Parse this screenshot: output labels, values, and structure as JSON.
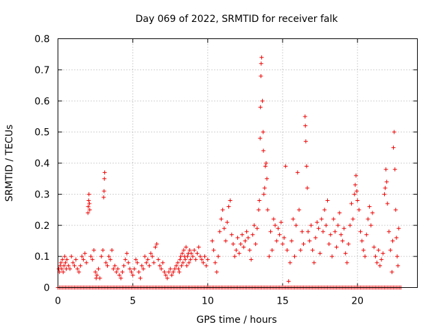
{
  "chart_data": {
    "type": "scatter",
    "title": "Day 069 of 2022, SRMTID for receiver falk",
    "xlabel": "GPS time / hours",
    "ylabel": "SRMTID / TECUs",
    "xlim": [
      0,
      24
    ],
    "ylim": [
      0,
      0.8
    ],
    "xticks": [
      0,
      5,
      10,
      15,
      20
    ],
    "xtick_labels": [
      "0",
      "5",
      "10",
      "15",
      "20"
    ],
    "yticks": [
      0,
      0.1,
      0.2,
      0.3,
      0.4,
      0.5,
      0.6,
      0.7,
      0.8
    ],
    "ytick_labels": [
      "0",
      "0.1",
      "0.2",
      "0.3",
      "0.4",
      "0.5",
      "0.6",
      "0.7",
      "0.8"
    ],
    "grid": true,
    "marker": "+",
    "series_color": "#ee0000",
    "series": [
      {
        "name": "SRMTID",
        "points": [
          [
            0.05,
            0.06
          ],
          [
            0.1,
            0.05
          ],
          [
            0.15,
            0.07
          ],
          [
            0.2,
            0.08
          ],
          [
            0.25,
            0.06
          ],
          [
            0.3,
            0.09
          ],
          [
            0.35,
            0.05
          ],
          [
            0.4,
            0.07
          ],
          [
            0.45,
            0.1
          ],
          [
            0.5,
            0.08
          ],
          [
            0.55,
            0.06
          ],
          [
            0.6,
            0.09
          ],
          [
            0.7,
            0.07
          ],
          [
            0.8,
            0.06
          ],
          [
            0.9,
            0.1
          ],
          [
            1.0,
            0.08
          ],
          [
            1.1,
            0.07
          ],
          [
            1.2,
            0.09
          ],
          [
            1.3,
            0.06
          ],
          [
            1.4,
            0.05
          ],
          [
            1.5,
            0.07
          ],
          [
            1.6,
            0.1
          ],
          [
            1.7,
            0.09
          ],
          [
            1.8,
            0.11
          ],
          [
            1.9,
            0.08
          ],
          [
            2.0,
            0.24
          ],
          [
            2.02,
            0.26
          ],
          [
            2.05,
            0.28
          ],
          [
            2.07,
            0.3
          ],
          [
            2.1,
            0.27
          ],
          [
            2.12,
            0.25
          ],
          [
            2.2,
            0.1
          ],
          [
            2.3,
            0.09
          ],
          [
            2.4,
            0.12
          ],
          [
            2.5,
            0.05
          ],
          [
            2.55,
            0.03
          ],
          [
            2.6,
            0.04
          ],
          [
            2.7,
            0.06
          ],
          [
            2.8,
            0.03
          ],
          [
            2.9,
            0.1
          ],
          [
            3.0,
            0.12
          ],
          [
            3.05,
            0.29
          ],
          [
            3.08,
            0.31
          ],
          [
            3.1,
            0.35
          ],
          [
            3.12,
            0.37
          ],
          [
            3.2,
            0.08
          ],
          [
            3.3,
            0.07
          ],
          [
            3.4,
            0.1
          ],
          [
            3.5,
            0.09
          ],
          [
            3.6,
            0.12
          ],
          [
            3.7,
            0.06
          ],
          [
            3.8,
            0.07
          ],
          [
            3.9,
            0.05
          ],
          [
            4.0,
            0.06
          ],
          [
            4.1,
            0.04
          ],
          [
            4.2,
            0.03
          ],
          [
            4.3,
            0.05
          ],
          [
            4.4,
            0.07
          ],
          [
            4.5,
            0.09
          ],
          [
            4.6,
            0.11
          ],
          [
            4.7,
            0.08
          ],
          [
            4.8,
            0.06
          ],
          [
            4.9,
            0.05
          ],
          [
            5.0,
            0.04
          ],
          [
            5.1,
            0.06
          ],
          [
            5.2,
            0.09
          ],
          [
            5.3,
            0.08
          ],
          [
            5.4,
            0.05
          ],
          [
            5.5,
            0.03
          ],
          [
            5.6,
            0.07
          ],
          [
            5.7,
            0.06
          ],
          [
            5.8,
            0.1
          ],
          [
            5.9,
            0.08
          ],
          [
            6.0,
            0.09
          ],
          [
            6.1,
            0.07
          ],
          [
            6.2,
            0.11
          ],
          [
            6.3,
            0.1
          ],
          [
            6.4,
            0.08
          ],
          [
            6.5,
            0.13
          ],
          [
            6.6,
            0.14
          ],
          [
            6.7,
            0.09
          ],
          [
            6.8,
            0.07
          ],
          [
            6.9,
            0.06
          ],
          [
            7.0,
            0.08
          ],
          [
            7.1,
            0.05
          ],
          [
            7.2,
            0.04
          ],
          [
            7.3,
            0.03
          ],
          [
            7.4,
            0.05
          ],
          [
            7.5,
            0.06
          ],
          [
            7.6,
            0.04
          ],
          [
            7.7,
            0.05
          ],
          [
            7.8,
            0.06
          ],
          [
            7.9,
            0.07
          ],
          [
            8.0,
            0.08
          ],
          [
            8.05,
            0.06
          ],
          [
            8.1,
            0.05
          ],
          [
            8.15,
            0.09
          ],
          [
            8.2,
            0.1
          ],
          [
            8.25,
            0.07
          ],
          [
            8.3,
            0.11
          ],
          [
            8.35,
            0.08
          ],
          [
            8.4,
            0.12
          ],
          [
            8.45,
            0.1
          ],
          [
            8.5,
            0.09
          ],
          [
            8.55,
            0.13
          ],
          [
            8.6,
            0.07
          ],
          [
            8.65,
            0.1
          ],
          [
            8.7,
            0.11
          ],
          [
            8.75,
            0.08
          ],
          [
            8.8,
            0.12
          ],
          [
            8.85,
            0.09
          ],
          [
            8.9,
            0.11
          ],
          [
            9.0,
            0.1
          ],
          [
            9.1,
            0.12
          ],
          [
            9.2,
            0.09
          ],
          [
            9.3,
            0.11
          ],
          [
            9.4,
            0.13
          ],
          [
            9.5,
            0.1
          ],
          [
            9.6,
            0.09
          ],
          [
            9.7,
            0.08
          ],
          [
            9.8,
            0.1
          ],
          [
            9.9,
            0.07
          ],
          [
            10.0,
            0.09
          ],
          [
            10.3,
            0.15
          ],
          [
            10.4,
            0.12
          ],
          [
            10.5,
            0.08
          ],
          [
            10.6,
            0.05
          ],
          [
            10.7,
            0.1
          ],
          [
            10.8,
            0.18
          ],
          [
            10.9,
            0.22
          ],
          [
            11.0,
            0.25
          ],
          [
            11.1,
            0.19
          ],
          [
            11.2,
            0.15
          ],
          [
            11.3,
            0.21
          ],
          [
            11.4,
            0.26
          ],
          [
            11.5,
            0.28
          ],
          [
            11.6,
            0.17
          ],
          [
            11.7,
            0.14
          ],
          [
            11.8,
            0.1
          ],
          [
            11.9,
            0.12
          ],
          [
            12.0,
            0.16
          ],
          [
            12.1,
            0.11
          ],
          [
            12.2,
            0.14
          ],
          [
            12.3,
            0.17
          ],
          [
            12.4,
            0.13
          ],
          [
            12.5,
            0.15
          ],
          [
            12.6,
            0.18
          ],
          [
            12.7,
            0.16
          ],
          [
            12.8,
            0.12
          ],
          [
            12.9,
            0.09
          ],
          [
            13.0,
            0.17
          ],
          [
            13.1,
            0.2
          ],
          [
            13.2,
            0.14
          ],
          [
            13.3,
            0.19
          ],
          [
            13.4,
            0.25
          ],
          [
            13.45,
            0.28
          ],
          [
            13.5,
            0.48
          ],
          [
            13.52,
            0.58
          ],
          [
            13.55,
            0.68
          ],
          [
            13.57,
            0.72
          ],
          [
            13.6,
            0.74
          ],
          [
            13.65,
            0.6
          ],
          [
            13.7,
            0.5
          ],
          [
            13.72,
            0.44
          ],
          [
            13.75,
            0.3
          ],
          [
            13.8,
            0.32
          ],
          [
            13.85,
            0.39
          ],
          [
            13.9,
            0.4
          ],
          [
            13.95,
            0.35
          ],
          [
            14.0,
            0.25
          ],
          [
            14.1,
            0.1
          ],
          [
            14.2,
            0.18
          ],
          [
            14.3,
            0.12
          ],
          [
            14.4,
            0.22
          ],
          [
            14.5,
            0.2
          ],
          [
            14.6,
            0.15
          ],
          [
            14.7,
            0.19
          ],
          [
            14.8,
            0.17
          ],
          [
            14.9,
            0.21
          ],
          [
            15.0,
            0.14
          ],
          [
            15.1,
            0.16
          ],
          [
            15.2,
            0.39
          ],
          [
            15.3,
            0.12
          ],
          [
            15.4,
            0.02
          ],
          [
            15.5,
            0.08
          ],
          [
            15.6,
            0.15
          ],
          [
            15.7,
            0.22
          ],
          [
            15.8,
            0.1
          ],
          [
            15.9,
            0.2
          ],
          [
            16.0,
            0.37
          ],
          [
            16.1,
            0.25
          ],
          [
            16.2,
            0.12
          ],
          [
            16.3,
            0.18
          ],
          [
            16.4,
            0.14
          ],
          [
            16.5,
            0.55
          ],
          [
            16.52,
            0.52
          ],
          [
            16.55,
            0.47
          ],
          [
            16.6,
            0.39
          ],
          [
            16.65,
            0.32
          ],
          [
            16.7,
            0.18
          ],
          [
            16.8,
            0.15
          ],
          [
            16.9,
            0.2
          ],
          [
            17.0,
            0.12
          ],
          [
            17.1,
            0.08
          ],
          [
            17.2,
            0.16
          ],
          [
            17.3,
            0.21
          ],
          [
            17.4,
            0.19
          ],
          [
            17.5,
            0.11
          ],
          [
            17.6,
            0.22
          ],
          [
            17.7,
            0.18
          ],
          [
            17.8,
            0.25
          ],
          [
            17.9,
            0.2
          ],
          [
            18.0,
            0.28
          ],
          [
            18.1,
            0.14
          ],
          [
            18.2,
            0.17
          ],
          [
            18.3,
            0.1
          ],
          [
            18.4,
            0.22
          ],
          [
            18.5,
            0.18
          ],
          [
            18.6,
            0.13
          ],
          [
            18.7,
            0.2
          ],
          [
            18.8,
            0.24
          ],
          [
            18.9,
            0.17
          ],
          [
            19.0,
            0.15
          ],
          [
            19.1,
            0.19
          ],
          [
            19.2,
            0.11
          ],
          [
            19.3,
            0.08
          ],
          [
            19.4,
            0.14
          ],
          [
            19.5,
            0.2
          ],
          [
            19.6,
            0.27
          ],
          [
            19.7,
            0.22
          ],
          [
            19.8,
            0.3
          ],
          [
            19.85,
            0.33
          ],
          [
            19.9,
            0.36
          ],
          [
            19.95,
            0.31
          ],
          [
            20.0,
            0.28
          ],
          [
            20.1,
            0.25
          ],
          [
            20.2,
            0.18
          ],
          [
            20.3,
            0.15
          ],
          [
            20.4,
            0.12
          ],
          [
            20.5,
            0.1
          ],
          [
            20.6,
            0.17
          ],
          [
            20.7,
            0.22
          ],
          [
            20.8,
            0.26
          ],
          [
            20.9,
            0.2
          ],
          [
            21.0,
            0.24
          ],
          [
            21.1,
            0.13
          ],
          [
            21.2,
            0.1
          ],
          [
            21.3,
            0.08
          ],
          [
            21.4,
            0.12
          ],
          [
            21.5,
            0.07
          ],
          [
            21.6,
            0.09
          ],
          [
            21.7,
            0.11
          ],
          [
            21.8,
            0.3
          ],
          [
            21.85,
            0.32
          ],
          [
            21.9,
            0.38
          ],
          [
            21.95,
            0.34
          ],
          [
            22.0,
            0.27
          ],
          [
            22.1,
            0.18
          ],
          [
            22.2,
            0.12
          ],
          [
            22.3,
            0.05
          ],
          [
            22.35,
            0.15
          ],
          [
            22.4,
            0.45
          ],
          [
            22.45,
            0.5
          ],
          [
            22.5,
            0.38
          ],
          [
            22.55,
            0.25
          ],
          [
            22.6,
            0.16
          ],
          [
            22.65,
            0.1
          ],
          [
            22.7,
            0.07
          ],
          [
            22.75,
            0.19
          ]
        ]
      }
    ],
    "zero_line": {
      "from": 0,
      "to": 22.9,
      "step": 0.1,
      "value": 0
    }
  }
}
